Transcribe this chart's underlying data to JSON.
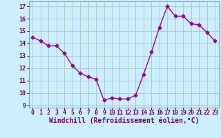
{
  "x": [
    0,
    1,
    2,
    3,
    4,
    5,
    6,
    7,
    8,
    9,
    10,
    11,
    12,
    13,
    14,
    15,
    16,
    17,
    18,
    19,
    20,
    21,
    22,
    23
  ],
  "y": [
    14.5,
    14.2,
    13.8,
    13.8,
    13.2,
    12.2,
    11.6,
    11.3,
    11.1,
    9.4,
    9.6,
    9.5,
    9.5,
    9.8,
    11.5,
    13.3,
    15.3,
    17.0,
    16.2,
    16.2,
    15.6,
    15.5,
    14.9,
    14.2
  ],
  "line_color": "#990099",
  "marker": "D",
  "markersize": 2.5,
  "linewidth": 1.0,
  "background_color": "#cceeff",
  "grid_color": "#aacccc",
  "xlabel": "Windchill (Refroidissement éolien,°C)",
  "xlabel_fontsize": 7.0,
  "tick_fontsize": 6.0,
  "ylim": [
    8.8,
    17.4
  ],
  "xlim": [
    -0.5,
    23.5
  ],
  "yticks": [
    9,
    10,
    11,
    12,
    13,
    14,
    15,
    16,
    17
  ],
  "xticks": [
    0,
    1,
    2,
    3,
    4,
    5,
    6,
    7,
    8,
    9,
    10,
    11,
    12,
    13,
    14,
    15,
    16,
    17,
    18,
    19,
    20,
    21,
    22,
    23
  ]
}
